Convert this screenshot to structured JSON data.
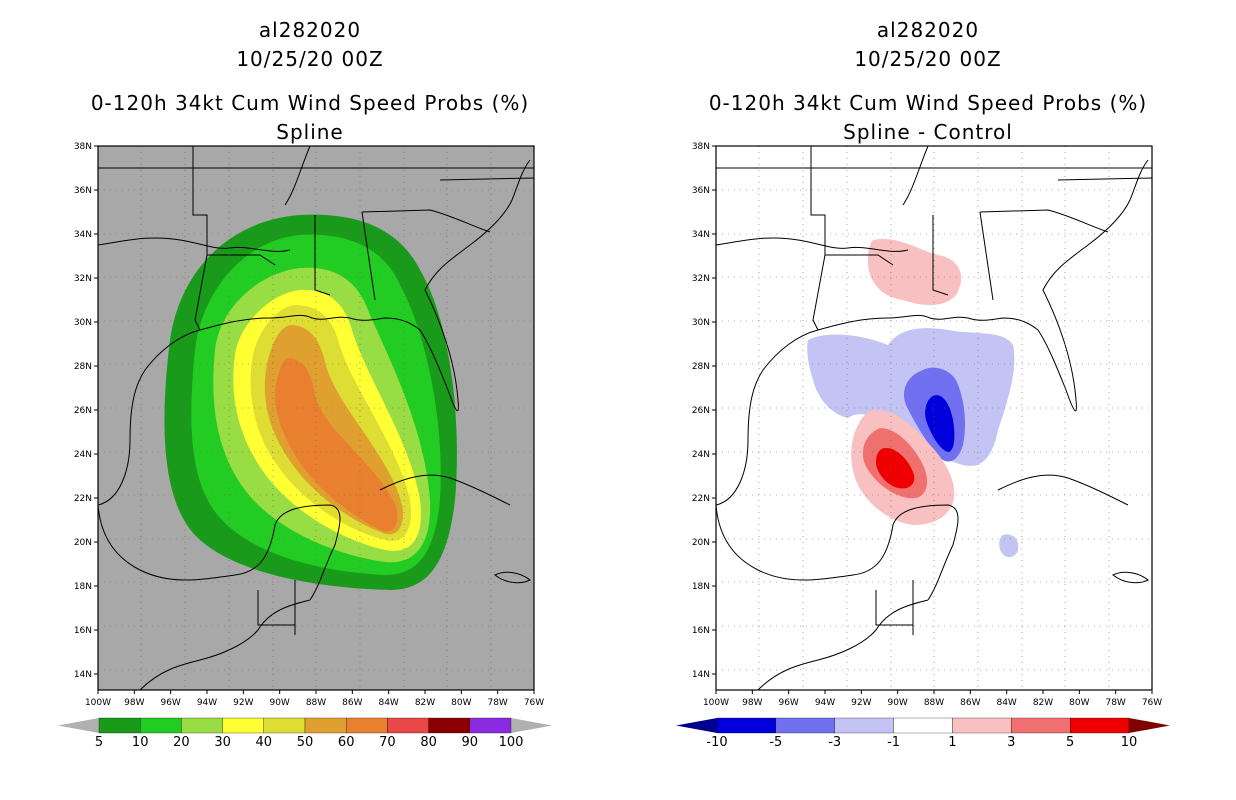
{
  "left": {
    "storm_id": "al282020",
    "datetime": "10/25/20 00Z",
    "product": "0-120h 34kt Cum Wind Speed Probs (%)",
    "subtitle": "Spline"
  },
  "right": {
    "storm_id": "al282020",
    "datetime": "10/25/20 00Z",
    "product": "0-120h 34kt Cum Wind Speed Probs (%)",
    "subtitle": "Spline - Control"
  },
  "axes": {
    "lon_labels": [
      "100W",
      "98W",
      "96W",
      "94W",
      "92W",
      "90W",
      "88W",
      "86W",
      "84W",
      "82W",
      "80W",
      "78W",
      "76W"
    ],
    "lat_labels": [
      "38N",
      "36N",
      "34N",
      "32N",
      "30N",
      "28N",
      "26N",
      "24N",
      "22N",
      "20N",
      "18N",
      "16N",
      "14N"
    ]
  },
  "colorbar_left": {
    "labels": [
      "5",
      "10",
      "20",
      "30",
      "40",
      "50",
      "60",
      "70",
      "80",
      "90",
      "100"
    ],
    "colors": [
      "#1a9a1a",
      "#22cc22",
      "#99dd44",
      "#ffff33",
      "#dddd33",
      "#e0a030",
      "#e88030",
      "#e84848",
      "#8b0000",
      "#8a2be2"
    ],
    "end_low": "#b0b0b0",
    "end_high": "#b0b0b0"
  },
  "colorbar_right": {
    "labels": [
      "-10",
      "-5",
      "-3",
      "-1",
      "1",
      "3",
      "5",
      "10"
    ],
    "colors": [
      "#0000dd",
      "#7070f0",
      "#c4c4f4",
      "#ffffff",
      "#f8c0c0",
      "#f07070",
      "#ee0000"
    ],
    "end_low": "#000090",
    "end_high": "#800000"
  }
}
